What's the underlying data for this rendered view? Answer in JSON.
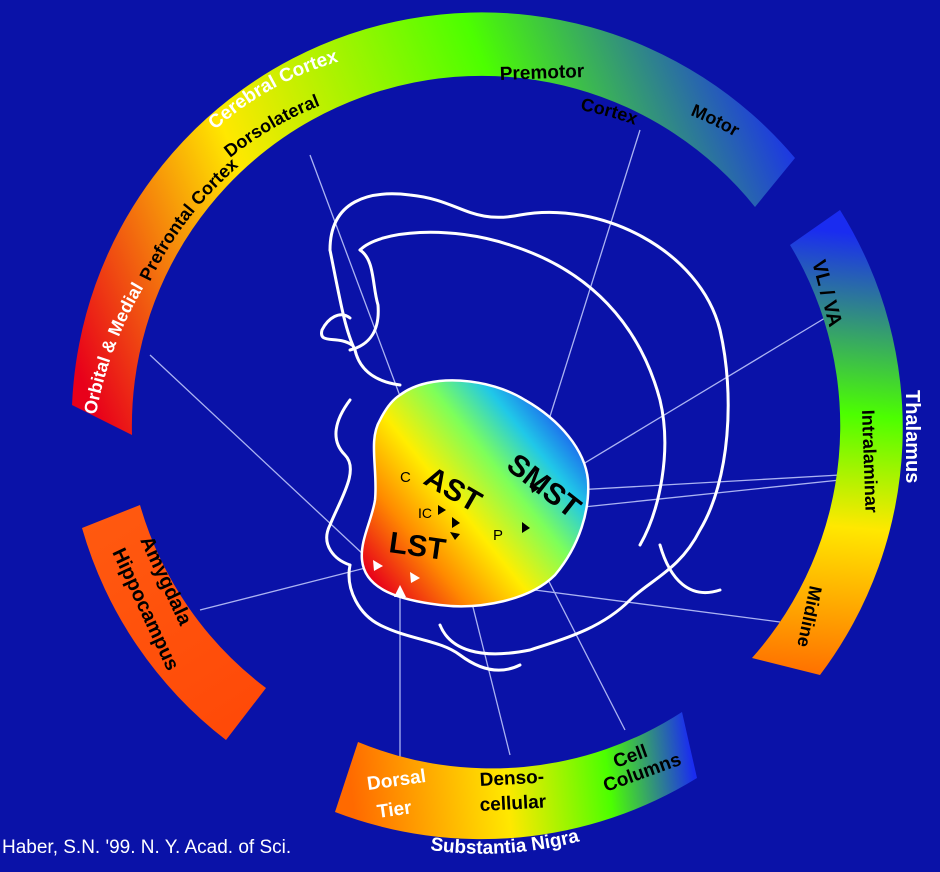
{
  "colors": {
    "background": "#0a12a8",
    "outline": "#ffffff",
    "gradient": [
      "#e8001a",
      "#ff6a00",
      "#ffe800",
      "#4cff00",
      "#1a2cf0"
    ]
  },
  "cortex": {
    "group_label": "Cerebral Cortex",
    "dorsolateral": "Dorsolateral",
    "prefrontal_cortex": "Prefrontal Cortex",
    "orbital_medial": "Orbital & Medial",
    "premotor": "Premotor",
    "cortex": "Cortex",
    "motor": "Motor"
  },
  "thalamus": {
    "group_label": "Thalamus",
    "vl_va": "VL / VA",
    "intralaminar": "Intralaminar",
    "midline": "Midline"
  },
  "substantia_nigra": {
    "group_label": "Substantia Nigra",
    "dorsal": "Dorsal",
    "tier": "Tier",
    "denso": "Denso-",
    "cellular": "cellular",
    "cell": "Cell",
    "columns": "Columns"
  },
  "amygdala": {
    "amygdala": "Amygdala",
    "hippocampus": "Hippocampus"
  },
  "striatum": {
    "smst": "SMST",
    "ast": "AST",
    "lst": "LST",
    "c": "C",
    "ic": "IC",
    "p": "P"
  },
  "credit": "Haber, S.N. '99. N. Y. Acad. of Sci."
}
